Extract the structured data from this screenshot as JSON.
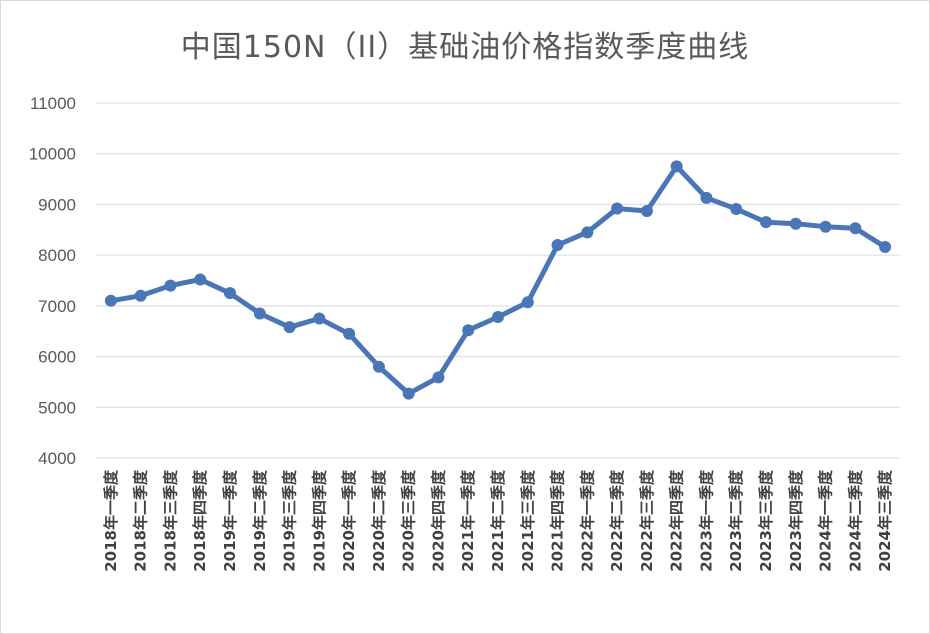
{
  "chart_data": {
    "type": "line",
    "title": "中国150N（II）基础油价格指数季度曲线",
    "xlabel": "",
    "ylabel": "",
    "ylim": [
      4000,
      11000
    ],
    "yticks": [
      4000,
      5000,
      6000,
      7000,
      8000,
      9000,
      10000,
      11000
    ],
    "grid": true,
    "legend": "none",
    "color": "#4a76b7",
    "categories": [
      "2018年一季度",
      "2018年二季度",
      "2018年三季度",
      "2018年四季度",
      "2019年一季度",
      "2019年二季度",
      "2019年三季度",
      "2019年四季度",
      "2020年一季度",
      "2020年二季度",
      "2020年三季度",
      "2020年四季度",
      "2021年一季度",
      "2021年二季度",
      "2021年三季度",
      "2021年四季度",
      "2022年一季度",
      "2022年二季度",
      "2022年三季度",
      "2022年四季度",
      "2023年一季度",
      "2023年二季度",
      "2023年三季度",
      "2023年四季度",
      "2024年一季度",
      "2024年二季度",
      "2024年三季度"
    ],
    "series": [
      {
        "values": [
          7100,
          7200,
          7400,
          7520,
          7250,
          6850,
          6580,
          6750,
          6450,
          5800,
          5270,
          5590,
          6520,
          6780,
          7070,
          8200,
          8450,
          8920,
          8870,
          9750,
          9130,
          8910,
          8650,
          8620,
          8560,
          8530,
          8160
        ]
      }
    ]
  }
}
